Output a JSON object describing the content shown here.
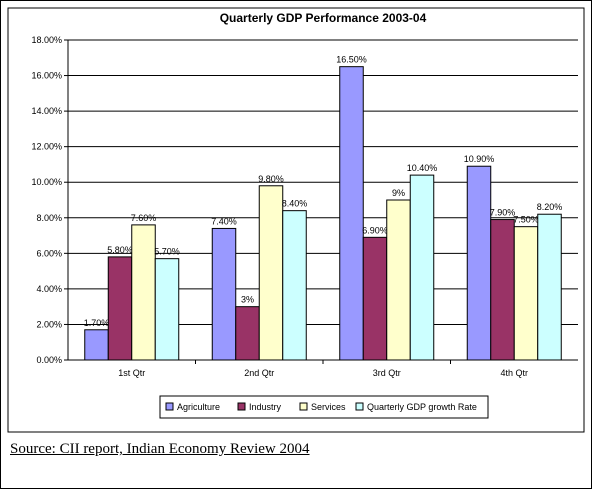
{
  "chart_data": {
    "type": "bar",
    "title": "Quarterly GDP Performance 2003-04",
    "categories": [
      "1st Qtr",
      "2nd Qtr",
      "3rd Qtr",
      "4th Qtr"
    ],
    "series": [
      {
        "name": "Agriculture",
        "color": "#9999ff",
        "values": [
          1.7,
          7.4,
          16.5,
          10.9
        ],
        "labels": [
          "1.70%",
          "7.40%",
          "16.50%",
          "10.90%"
        ]
      },
      {
        "name": "Industry",
        "color": "#993366",
        "values": [
          5.8,
          3.0,
          6.9,
          7.9
        ],
        "labels": [
          "5.80%",
          "3%",
          "6.90%",
          "7.90%"
        ]
      },
      {
        "name": "Services",
        "color": "#ffffcc",
        "values": [
          7.6,
          9.8,
          9.0,
          7.5
        ],
        "labels": [
          "7.60%",
          "9.80%",
          "9%",
          "7.50%"
        ]
      },
      {
        "name": "Quarterly GDP growth Rate",
        "color": "#ccffff",
        "values": [
          5.7,
          8.4,
          10.4,
          8.2
        ],
        "labels": [
          "5.70%",
          "8.40%",
          "10.40%",
          "8.20%"
        ]
      }
    ],
    "yticks": [
      "0.00%",
      "2.00%",
      "4.00%",
      "6.00%",
      "8.00%",
      "10.00%",
      "12.00%",
      "14.00%",
      "16.00%",
      "18.00%"
    ],
    "ylim": [
      0,
      18
    ],
    "grid": true,
    "legend_position": "bottom"
  },
  "source_text": "Source: CII report, Indian Economy Review 2004"
}
